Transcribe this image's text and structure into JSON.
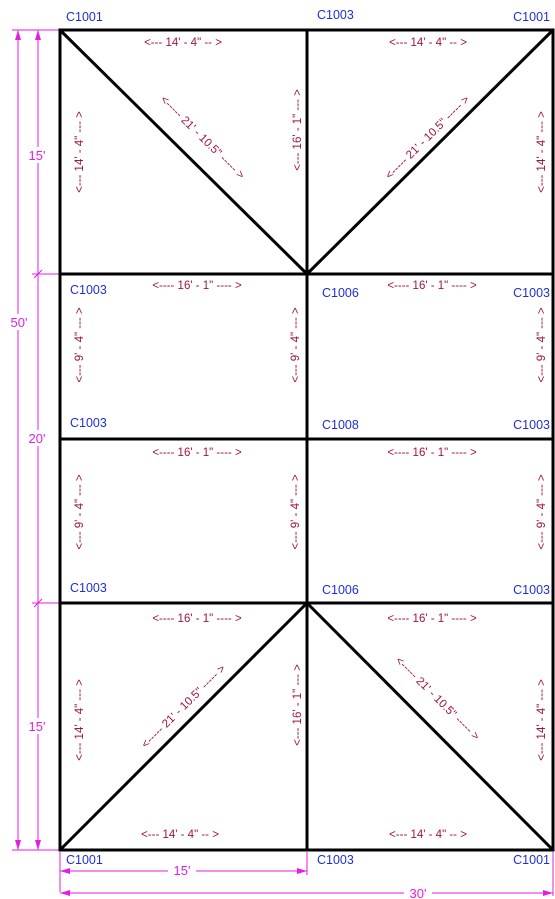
{
  "colors": {
    "frame": "#000000",
    "node_label": "#1f2fd6",
    "measurement": "#a0153e",
    "dimension": "#e61ce6"
  },
  "nodes": {
    "top_left": "C1001",
    "top_mid": "C1003",
    "top_right": "C1001",
    "row1_left": "C1003",
    "row1_mid": "C1006",
    "row1_right": "C1003",
    "row2_left": "C1003",
    "row2_mid": "C1008",
    "row2_right": "C1003",
    "row3_left": "C1003",
    "row3_mid": "C1006",
    "row3_right": "C1003",
    "bottom_left": "C1001",
    "bottom_mid": "C1003",
    "bottom_right": "C1001"
  },
  "members": {
    "top_chord_left": "<--- 14' - 4\" -- >",
    "top_chord_right": "<--- 14' - 4\" -- >",
    "top_left_post": "<--- 14' - 4\" --- >",
    "top_mid_post": "<--- 16' - 1\" --- >",
    "top_right_post": "<--- 14' - 4\" --- >",
    "top_left_diag": "<----- 21' - 10.5\" ----- >",
    "top_right_diag": "<----- 21' - 10.5\" ----- >",
    "beam1_left": "<---- 16' - 1\" ---- >",
    "beam1_right": "<---- 16' - 1\" ---- >",
    "mid1_left_post": "<--- 9' - 4\" --- >",
    "mid1_mid_post": "<--- 9' - 4\" --- >",
    "mid1_right_post": "<--- 9' - 4\" --- >",
    "beam2_left": "<---- 16' - 1\" ---- >",
    "beam2_right": "<---- 16' - 1\" ---- >",
    "mid2_left_post": "<--- 9' - 4\" --- >",
    "mid2_mid_post": "<--- 9' - 4\" --- >",
    "mid2_right_post": "<--- 9' - 4\" --- >",
    "beam3_left": "<---- 16' - 1\" ---- >",
    "beam3_right": "<---- 16' - 1\" ---- >",
    "bot_left_post": "<--- 14' - 4\" --- >",
    "bot_mid_post": "<--- 16' - 1\" --- >",
    "bot_right_post": "<--- 14' - 4\" --- >",
    "bot_left_diag": "<----- 21' - 10.5\" ----- >",
    "bot_right_diag": "<----- 21' - 10.5\" ----- >",
    "bot_chord_left": "<--- 14' - 4\" -- >",
    "bot_chord_right": "<--- 14' - 4\" -- >"
  },
  "dimensions": {
    "overall_height": "50'",
    "top_section": "15'",
    "middle_section": "20'",
    "bottom_section": "15'",
    "half_width": "15'",
    "overall_width": "30'"
  }
}
